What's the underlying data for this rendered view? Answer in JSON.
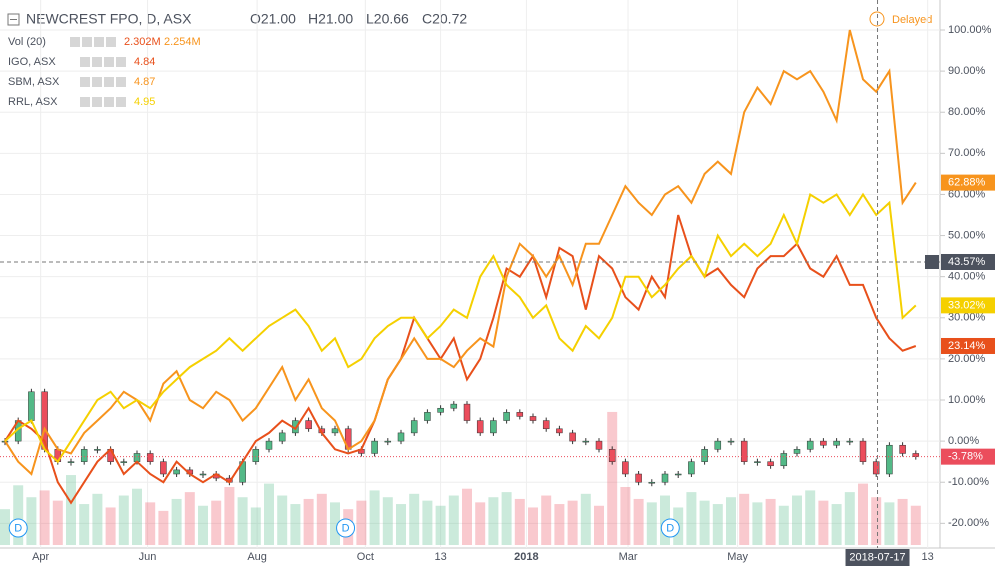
{
  "header": {
    "title": "NEWCREST FPO, D, ASX",
    "ohlc": [
      "O21.00",
      "H21.00",
      "L20.66",
      "C20.72"
    ],
    "status": "Delayed"
  },
  "chart_data": {
    "type": "compare",
    "xlim": [
      0,
      70
    ],
    "ylim": [
      -26,
      107.3
    ],
    "grid": true,
    "yticks": [
      {
        "value": 100,
        "label": "100.00%"
      },
      {
        "value": 90,
        "label": "90.00%"
      },
      {
        "value": 80,
        "label": "80.00%"
      },
      {
        "value": 70,
        "label": "70.00%"
      },
      {
        "value": 60,
        "label": "60.00%"
      },
      {
        "value": 50,
        "label": "50.00%"
      },
      {
        "value": 40,
        "label": "40.00%"
      },
      {
        "value": 30,
        "label": "30.00%"
      },
      {
        "value": 20,
        "label": "20.00%"
      },
      {
        "value": 10,
        "label": "10.00%"
      },
      {
        "value": 0,
        "label": "0.00%"
      },
      {
        "value": -10,
        "label": "-10.00%"
      },
      {
        "value": -20,
        "label": "-20.00%"
      }
    ],
    "xticks": [
      {
        "value": 2.7,
        "label": "Apr"
      },
      {
        "value": 10.8,
        "label": "Jun"
      },
      {
        "value": 19.1,
        "label": "Aug"
      },
      {
        "value": 27.3,
        "label": "Oct"
      },
      {
        "value": 33,
        "label": "13"
      },
      {
        "value": 39.5,
        "label": "2018"
      },
      {
        "value": 47.2,
        "label": "Mar"
      },
      {
        "value": 55.5,
        "label": "May"
      },
      {
        "value": 69.9,
        "label": "13"
      }
    ],
    "main": {
      "up_color": "#53b987",
      "down_color": "#eb4d5c",
      "last_label": "-3.78%",
      "values": [
        0,
        5,
        12,
        -2,
        -5,
        -5,
        -2,
        -2,
        -5,
        -5,
        -3,
        -5,
        -8,
        -7,
        -8,
        -8,
        -9,
        -10,
        -5,
        -2,
        0,
        2,
        5,
        3,
        2,
        3,
        -2,
        -3,
        0,
        0,
        2,
        5,
        7,
        8,
        9,
        5,
        2,
        5,
        7,
        6,
        5,
        3,
        2,
        0,
        0,
        -2,
        -5,
        -8,
        -10,
        -10,
        -8,
        -8,
        -5,
        -2,
        0,
        0,
        -5,
        -5,
        -6,
        -3,
        -2,
        0,
        -1,
        0,
        0,
        -5,
        -8,
        -1,
        -3,
        -3.78
      ]
    },
    "volume": {
      "name": "Vol (20)",
      "last_label": "2.302M",
      "ma_label": "2.254M",
      "color": "#e8501b",
      "ma_color": "#f7941d",
      "ylim": [
        0,
        8.5
      ],
      "values": [
        2.1,
        3.5,
        2.8,
        3.2,
        2.6,
        4.1,
        2.4,
        3.0,
        2.2,
        2.9,
        3.3,
        2.5,
        2.0,
        2.7,
        3.1,
        2.3,
        2.6,
        3.4,
        2.8,
        2.2,
        3.6,
        2.9,
        2.4,
        2.7,
        3.0,
        2.5,
        2.1,
        2.6,
        3.2,
        2.8,
        2.4,
        3.0,
        2.6,
        2.3,
        2.9,
        3.3,
        2.5,
        2.8,
        3.1,
        2.7,
        2.2,
        2.9,
        2.4,
        2.6,
        3.0,
        2.3,
        7.8,
        3.4,
        2.7,
        2.5,
        2.9,
        2.2,
        3.1,
        2.6,
        2.4,
        2.8,
        3.0,
        2.5,
        2.7,
        2.3,
        2.9,
        3.2,
        2.6,
        2.4,
        3.1,
        3.6,
        2.8,
        2.5,
        2.7,
        2.302
      ]
    },
    "series": [
      {
        "name": "IGO, ASX",
        "price": 4.84,
        "color": "#e8501b",
        "last_label": "23.14%",
        "values": [
          0,
          5,
          3,
          0,
          -10,
          -15,
          -10,
          -5,
          -2,
          -8,
          -5,
          -8,
          -10,
          -5,
          -8,
          -10,
          -8,
          -10,
          -5,
          0,
          2,
          5,
          3,
          8,
          2,
          -2,
          -3,
          -2,
          5,
          15,
          20,
          30,
          25,
          20,
          25,
          15,
          20,
          30,
          42,
          40,
          45,
          35,
          47,
          45,
          32,
          45,
          42,
          35,
          32,
          40,
          35,
          55,
          45,
          40,
          42,
          38,
          35,
          42,
          45,
          45,
          48,
          42,
          40,
          45,
          38,
          38,
          30,
          25,
          22,
          23.14
        ]
      },
      {
        "name": "SBM, ASX",
        "price": 4.87,
        "color": "#f7941d",
        "last_label": "62.88%",
        "values": [
          0,
          -5,
          -8,
          3,
          -2,
          -3,
          2,
          5,
          8,
          12,
          10,
          5,
          14,
          17,
          10,
          8,
          12,
          10,
          5,
          8,
          13,
          18,
          10,
          15,
          8,
          5,
          -2,
          0,
          5,
          15,
          20,
          25,
          20,
          20,
          18,
          22,
          25,
          23,
          40,
          48,
          45,
          40,
          45,
          38,
          48,
          48,
          55,
          62,
          58,
          55,
          60,
          62,
          58,
          65,
          68,
          65,
          80,
          86,
          82,
          90,
          88,
          90,
          85,
          78,
          100,
          88,
          85,
          90,
          58,
          62.88
        ]
      },
      {
        "name": "RRL, ASX",
        "price": 4.95,
        "color": "#f5d000",
        "last_label": "33.02%",
        "values": [
          0,
          3,
          5,
          -2,
          -5,
          0,
          5,
          10,
          12,
          8,
          10,
          8,
          12,
          15,
          18,
          20,
          22,
          25,
          22,
          25,
          28,
          30,
          32,
          28,
          22,
          25,
          18,
          20,
          25,
          28,
          30,
          30,
          25,
          28,
          32,
          30,
          40,
          45,
          38,
          35,
          30,
          33,
          25,
          22,
          28,
          25,
          30,
          40,
          40,
          35,
          38,
          42,
          45,
          40,
          50,
          45,
          48,
          45,
          48,
          55,
          48,
          60,
          58,
          60,
          55,
          60,
          55,
          58,
          30,
          33.02
        ]
      }
    ],
    "dividends": [
      {
        "x": 1,
        "label": "D"
      },
      {
        "x": 25.8,
        "label": "D"
      },
      {
        "x": 50.4,
        "label": "D"
      }
    ],
    "crosshair": {
      "x": 66.1,
      "x_label": "2018-07-17",
      "y": 43.57,
      "y_label": "43.57%"
    }
  }
}
